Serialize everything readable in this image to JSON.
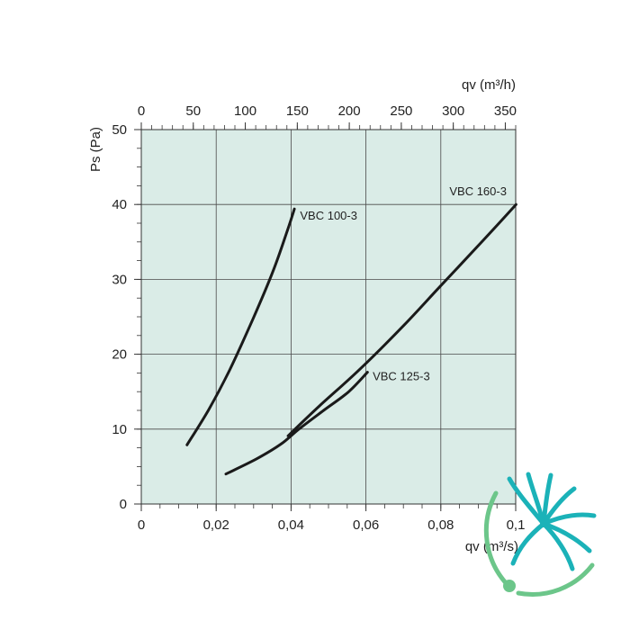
{
  "chart_data": {
    "type": "line",
    "x_bottom": {
      "label": "qv  (m³/s)",
      "range": [
        0,
        0.1
      ],
      "ticks": [
        0,
        0.02,
        0.04,
        0.06,
        0.08,
        0.1
      ],
      "tick_labels": [
        "0",
        "0,02",
        "0,04",
        "0,06",
        "0,08",
        "0,1"
      ]
    },
    "x_top": {
      "label": "qv  (m³/h)",
      "range": [
        0,
        360
      ],
      "ticks": [
        0,
        50,
        100,
        150,
        200,
        250,
        300,
        350
      ],
      "tick_labels": [
        "0",
        "50",
        "100",
        "150",
        "200",
        "250",
        "300",
        "350"
      ]
    },
    "y": {
      "label": "Ps (Pa)",
      "range": [
        0,
        50
      ],
      "ticks": [
        0,
        10,
        20,
        30,
        40,
        50
      ],
      "tick_labels": [
        "0",
        "10",
        "20",
        "30",
        "40",
        "50"
      ]
    },
    "grid": true,
    "plot_background": "#daece7",
    "series": [
      {
        "name": "VBC 100-3",
        "color": "#1a1a1a",
        "points": [
          [
            0.0122,
            7.9
          ],
          [
            0.018,
            12.6
          ],
          [
            0.0236,
            17.9
          ],
          [
            0.0299,
            24.8
          ],
          [
            0.0352,
            31.1
          ],
          [
            0.0388,
            36.2
          ],
          [
            0.0409,
            39.4
          ]
        ]
      },
      {
        "name": "VBC 125-3",
        "color": "#1a1a1a",
        "points": [
          [
            0.0226,
            4.0
          ],
          [
            0.0307,
            6.0
          ],
          [
            0.0373,
            8.0
          ],
          [
            0.0421,
            10.0
          ],
          [
            0.0487,
            12.5
          ],
          [
            0.0554,
            15.0
          ],
          [
            0.0604,
            17.6
          ]
        ]
      },
      {
        "name": "VBC 160-3",
        "color": "#1a1a1a",
        "points": [
          [
            0.0392,
            9.1
          ],
          [
            0.0476,
            13.1
          ],
          [
            0.0584,
            18.0
          ],
          [
            0.0702,
            23.9
          ],
          [
            0.0797,
            29.0
          ],
          [
            0.0913,
            35.2
          ],
          [
            0.1001,
            40.0
          ]
        ]
      }
    ],
    "annotations": [
      {
        "text": "VBC 100-3",
        "x": 0.0424,
        "y": 38.0
      },
      {
        "text": "VBC 125-3",
        "x": 0.0618,
        "y": 16.5
      },
      {
        "text": "VBC 160-3",
        "x": 0.0823,
        "y": 41.2
      }
    ]
  },
  "logo": {
    "name": "fan-logo-icon",
    "teal": "#1bb2b8",
    "green": "#6cc68a"
  }
}
